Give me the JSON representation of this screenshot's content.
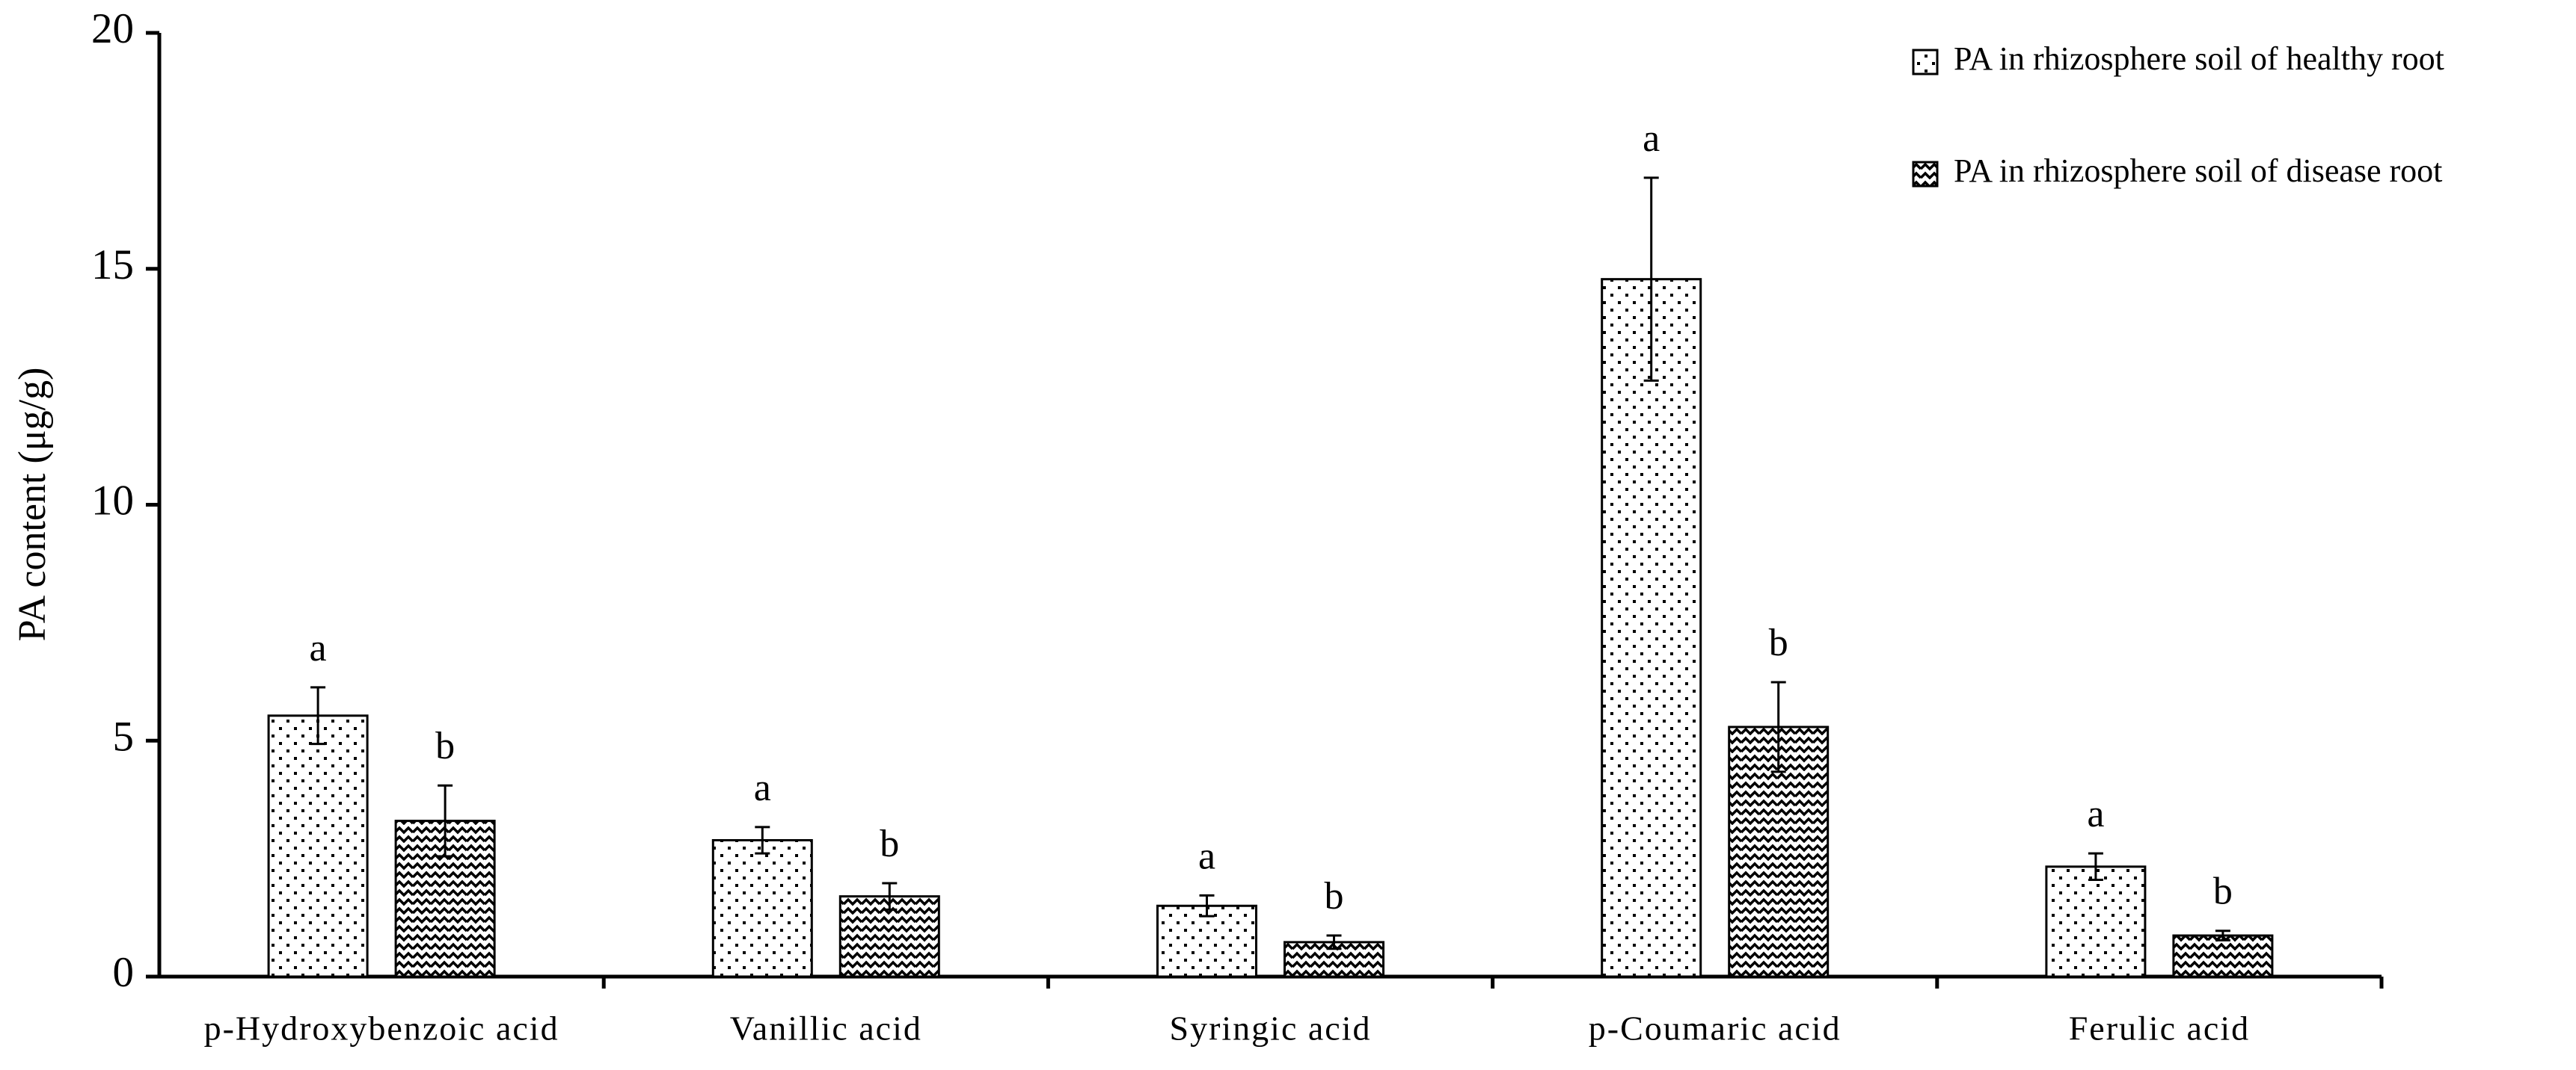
{
  "chart_data": {
    "type": "bar",
    "y_label": "PA content (μg/g)",
    "categories": [
      "p-Hydroxybenzoic acid",
      "Vanillic acid",
      "Syringic acid",
      "p-Coumaric acid",
      "Ferulic acid"
    ],
    "series": [
      {
        "name": "PA in rhizosphere soil of healthy root",
        "color": "#000000",
        "pattern": "dots",
        "values": [
          5.53,
          2.89,
          1.5,
          14.78,
          2.33
        ],
        "errors": [
          0.6,
          0.28,
          0.22,
          2.15,
          0.28
        ],
        "significance": [
          "a",
          "a",
          "a",
          "a",
          "a"
        ]
      },
      {
        "name": "PA in rhizosphere soil of disease root",
        "color": "#000000",
        "pattern": "zigzag",
        "values": [
          3.3,
          1.7,
          0.73,
          5.29,
          0.87
        ],
        "errors": [
          0.75,
          0.28,
          0.14,
          0.95,
          0.1
        ],
        "significance": [
          "b",
          "b",
          "b",
          "b",
          "b"
        ]
      }
    ],
    "ylim": [
      0,
      20
    ],
    "yticks": [
      0,
      5,
      10,
      15,
      20
    ],
    "grid": false,
    "legend": "top-right"
  }
}
